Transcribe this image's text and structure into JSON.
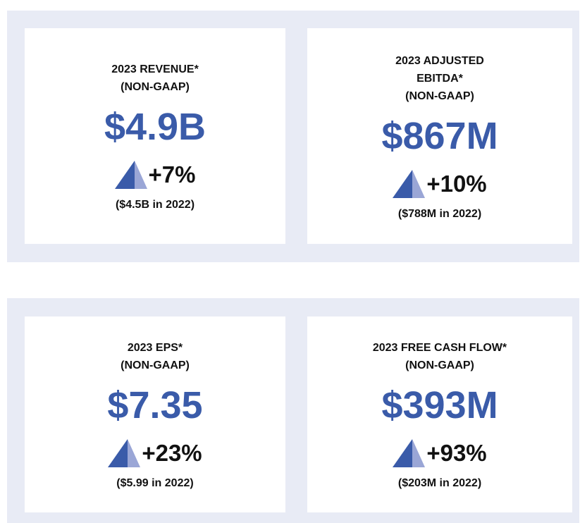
{
  "panels": [
    {
      "cards": [
        {
          "title": [
            "2023 REVENUE*",
            "(NON-GAAP)"
          ],
          "value": "$4.9B",
          "change": "+7%",
          "prior": "($4.5B in 2022)"
        },
        {
          "title": [
            "2023 ADJUSTED",
            "EBITDA*",
            "(NON-GAAP)"
          ],
          "value": "$867M",
          "change": "+10%",
          "prior": "($788M in 2022)"
        }
      ]
    },
    {
      "cards": [
        {
          "title": [
            "2023 EPS*",
            "(NON-GAAP)"
          ],
          "value": "$7.35",
          "change": "+23%",
          "prior": "($5.99 in 2022)"
        },
        {
          "title": [
            "2023 FREE CASH FLOW*",
            "(NON-GAAP)"
          ],
          "value": "$393M",
          "change": "+93%",
          "prior": "($203M in 2022)"
        }
      ]
    }
  ]
}
